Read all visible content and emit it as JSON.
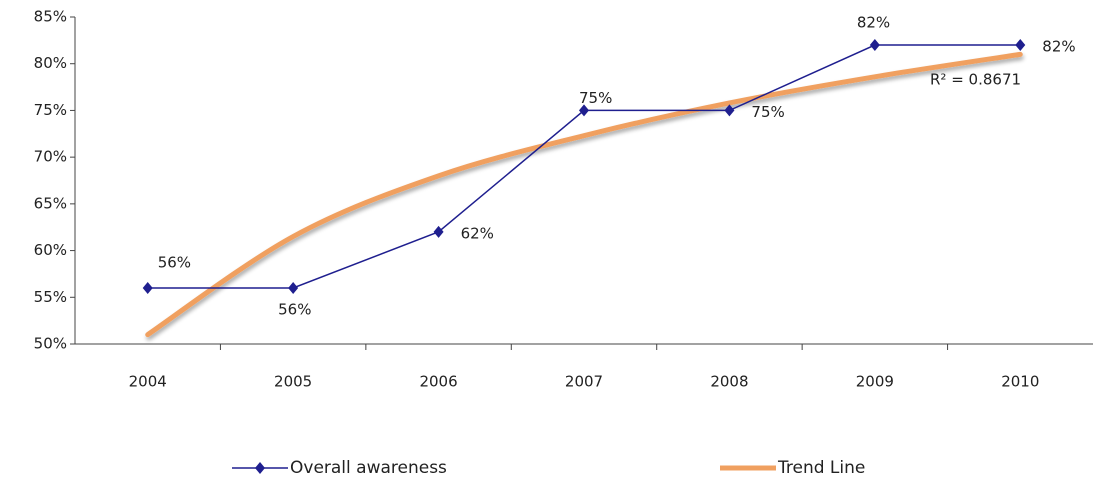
{
  "chart_data": {
    "type": "line",
    "categories": [
      "2004",
      "2005",
      "2006",
      "2007",
      "2008",
      "2009",
      "2010"
    ],
    "series": [
      {
        "name": "Overall awareness",
        "color": "#1f1f8f",
        "values": [
          56,
          56,
          62,
          75,
          75,
          82,
          82
        ],
        "value_labels": [
          "56%",
          "56%",
          "62%",
          "75%",
          "75%",
          "82%",
          "82%"
        ]
      },
      {
        "name": "Trend Line",
        "color": "#f0a060",
        "values": [
          51,
          61.5,
          68,
          72.3,
          75.8,
          78.6,
          81
        ]
      }
    ],
    "ylim": [
      50,
      85
    ],
    "yticks": [
      {
        "value": 50,
        "label": "50%"
      },
      {
        "value": 55,
        "label": "55%"
      },
      {
        "value": 60,
        "label": "60%"
      },
      {
        "value": 65,
        "label": "65%"
      },
      {
        "value": 70,
        "label": "70%"
      },
      {
        "value": 75,
        "label": "75%"
      },
      {
        "value": 80,
        "label": "80%"
      },
      {
        "value": 85,
        "label": "85%"
      }
    ],
    "annotation": "R² = 0.8671",
    "legend": "bottom"
  }
}
